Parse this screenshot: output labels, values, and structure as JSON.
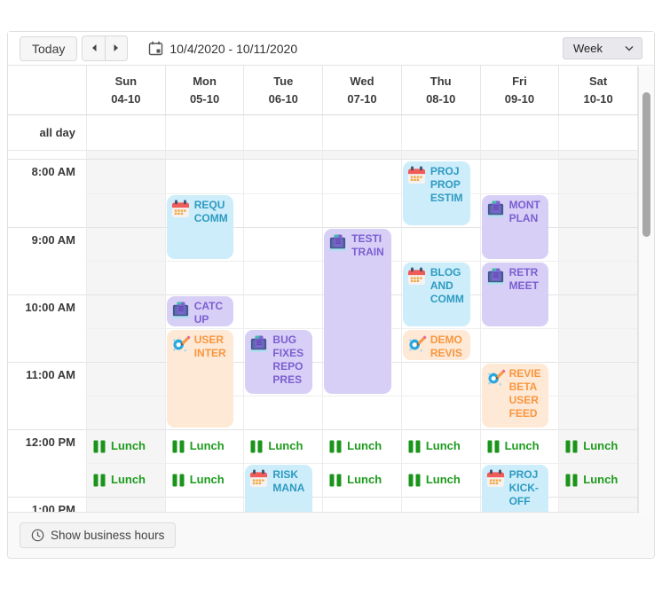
{
  "toolbar": {
    "today_label": "Today",
    "date_range": "10/4/2020 - 10/11/2020",
    "view_selected": "Week"
  },
  "calendar": {
    "all_day_label": "all day",
    "days": [
      {
        "name": "Sun",
        "date": "04-10",
        "weekend": true
      },
      {
        "name": "Mon",
        "date": "05-10",
        "weekend": false
      },
      {
        "name": "Tue",
        "date": "06-10",
        "weekend": false
      },
      {
        "name": "Wed",
        "date": "07-10",
        "weekend": false
      },
      {
        "name": "Thu",
        "date": "08-10",
        "weekend": false
      },
      {
        "name": "Fri",
        "date": "09-10",
        "weekend": false
      },
      {
        "name": "Sat",
        "date": "10-10",
        "weekend": true
      }
    ],
    "times": [
      "8:00 AM",
      "9:00 AM",
      "10:00 AM",
      "11:00 AM",
      "12:00 PM",
      "1:00 PM"
    ],
    "events": [
      {
        "title": "PROJ PROP ESTIM",
        "type": "meeting",
        "day": 4,
        "slot": 0,
        "span": 2
      },
      {
        "title": "REQU COMM",
        "type": "meeting",
        "day": 1,
        "slot": 1,
        "span": 2
      },
      {
        "title": "MONT PLAN",
        "type": "presentation",
        "day": 5,
        "slot": 1,
        "span": 2
      },
      {
        "title": "TESTI TRAIN",
        "type": "presentation",
        "day": 3,
        "slot": 2,
        "span": 5
      },
      {
        "title": "BLOG AND COMM",
        "type": "meeting",
        "day": 4,
        "slot": 3,
        "span": 2
      },
      {
        "title": "RETR MEET",
        "type": "presentation",
        "day": 5,
        "slot": 3,
        "span": 2
      },
      {
        "title": "CATC UP",
        "type": "presentation",
        "day": 1,
        "slot": 4,
        "span": 1
      },
      {
        "title": "USER INTER",
        "type": "design",
        "day": 1,
        "slot": 5,
        "span": 3
      },
      {
        "title": "BUG FIXES REPO PRES",
        "type": "presentation",
        "day": 2,
        "slot": 5,
        "span": 2
      },
      {
        "title": "DEMO REVIS",
        "type": "design",
        "day": 4,
        "slot": 5,
        "span": 1
      },
      {
        "title": "REVIE BETA USER FEED",
        "type": "design",
        "day": 5,
        "slot": 6,
        "span": 2
      },
      {
        "title": "Lunch",
        "type": "lunch",
        "day": 0,
        "slot": 8,
        "span": 1
      },
      {
        "title": "Lunch",
        "type": "lunch",
        "day": 1,
        "slot": 8,
        "span": 1
      },
      {
        "title": "Lunch",
        "type": "lunch",
        "day": 2,
        "slot": 8,
        "span": 1
      },
      {
        "title": "Lunch",
        "type": "lunch",
        "day": 3,
        "slot": 8,
        "span": 1
      },
      {
        "title": "Lunch",
        "type": "lunch",
        "day": 4,
        "slot": 8,
        "span": 1
      },
      {
        "title": "Lunch",
        "type": "lunch",
        "day": 5,
        "slot": 8,
        "span": 1
      },
      {
        "title": "Lunch",
        "type": "lunch",
        "day": 6,
        "slot": 8,
        "span": 1
      },
      {
        "title": "Lunch",
        "type": "lunch",
        "day": 0,
        "slot": 9,
        "span": 1
      },
      {
        "title": "Lunch",
        "type": "lunch",
        "day": 1,
        "slot": 9,
        "span": 1
      },
      {
        "title": "RISK MANA",
        "type": "meeting",
        "day": 2,
        "slot": 9,
        "span": 2
      },
      {
        "title": "Lunch",
        "type": "lunch",
        "day": 3,
        "slot": 9,
        "span": 1
      },
      {
        "title": "Lunch",
        "type": "lunch",
        "day": 4,
        "slot": 9,
        "span": 1
      },
      {
        "title": "PROJ KICK-OFF",
        "type": "meeting",
        "day": 5,
        "slot": 9,
        "span": 2
      },
      {
        "title": "Lunch",
        "type": "lunch",
        "day": 6,
        "slot": 9,
        "span": 1
      }
    ]
  },
  "footer": {
    "business_hours_label": "Show business hours"
  },
  "colors": {
    "meeting_bg": "#cdedfb",
    "meeting_text": "#2e9bc0",
    "presentation_bg": "#d8cff7",
    "presentation_text": "#7a5fd0",
    "design_bg": "#fde9d6",
    "design_text": "#f9963f",
    "lunch_text": "#1d9b1d",
    "weekend_bg": "#f5f5f5"
  }
}
